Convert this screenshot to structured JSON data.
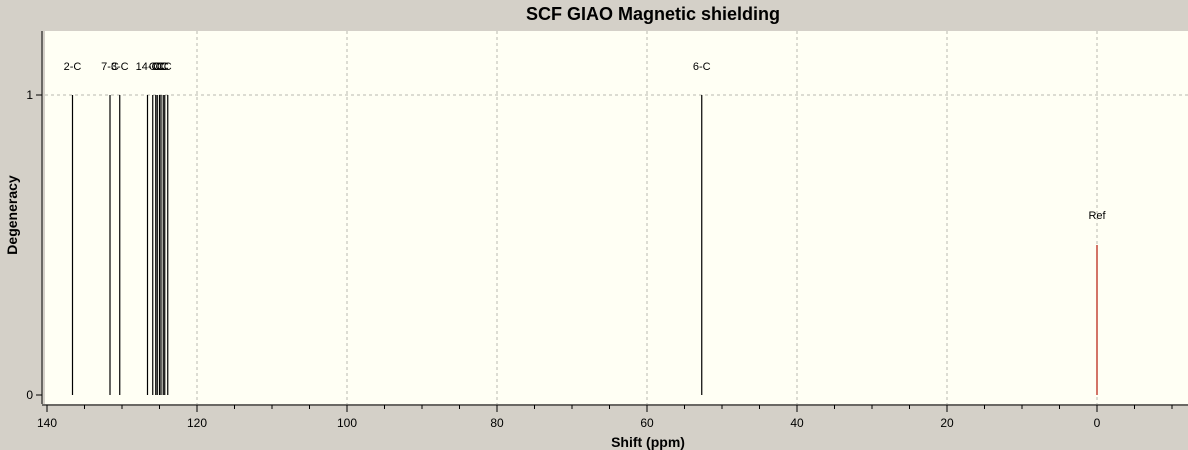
{
  "chart_data": {
    "type": "bar",
    "title": "SCF GIAO Magnetic shielding",
    "xlabel": "Shift (ppm)",
    "ylabel": "Degeneracy",
    "xlim": [
      142,
      -12
    ],
    "ylim": [
      0,
      1.2
    ],
    "x_reversed": true,
    "grid": true,
    "background_color": "#fffff4",
    "frame_color": "#d4d0c8",
    "grid_color": "#b8b8b0",
    "peak_color": "#000000",
    "ref_color": "#c0392b",
    "x_ticks": [
      140,
      120,
      100,
      80,
      60,
      40,
      20,
      0
    ],
    "y_ticks": [
      0,
      1
    ],
    "peaks": [
      {
        "label": "2-C",
        "x": 136.6,
        "y": 1
      },
      {
        "label": "7-C",
        "x": 131.6,
        "y": 1
      },
      {
        "label": "3-C",
        "x": 130.3,
        "y": 1
      },
      {
        "label": "14-C",
        "x": 126.6,
        "y": 1
      },
      {
        "label": "C",
        "x": 125.9,
        "y": 1
      },
      {
        "label": "C",
        "x": 125.5,
        "y": 1
      },
      {
        "label": "C",
        "x": 125.3,
        "y": 1
      },
      {
        "label": "C",
        "x": 125.0,
        "y": 1
      },
      {
        "label": "C",
        "x": 124.8,
        "y": 1
      },
      {
        "label": "C",
        "x": 124.5,
        "y": 1
      },
      {
        "label": "C",
        "x": 124.3,
        "y": 1
      },
      {
        "label": "C",
        "x": 123.9,
        "y": 1
      },
      {
        "label": "6-C",
        "x": 52.7,
        "y": 1
      }
    ],
    "reference": {
      "label": "Ref",
      "x": 0,
      "y": 0.5
    }
  }
}
